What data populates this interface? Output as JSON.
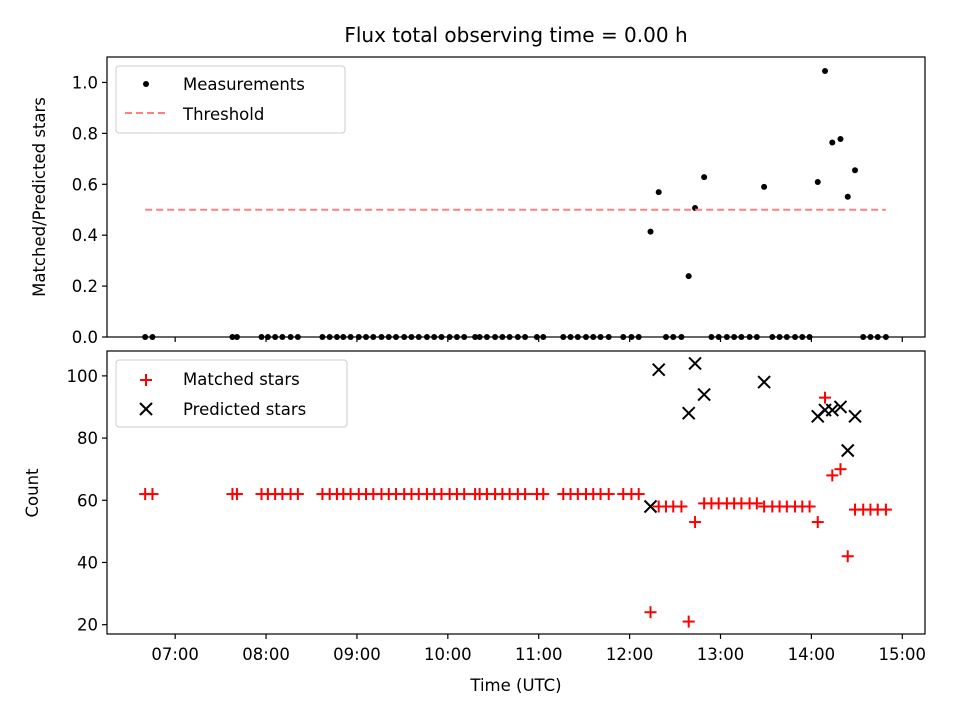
{
  "chart_data": [
    {
      "type": "scatter",
      "title": "Flux total observing time = 0.00 h",
      "xlabel": "",
      "ylabel": "Matched/Predicted stars",
      "xlim": [
        6.25,
        15.25
      ],
      "ylim": [
        0,
        1.1
      ],
      "yticks": [
        0.0,
        0.2,
        0.4,
        0.6,
        0.8,
        1.0
      ],
      "ytick_labels": [
        "0.0",
        "0.2",
        "0.4",
        "0.6",
        "0.8",
        "1.0"
      ],
      "grid": false,
      "legend": "top-left",
      "series": [
        {
          "name": "Measurements",
          "marker": "dot",
          "color": "#000000",
          "x": [
            6.67,
            6.75,
            7.63,
            7.68,
            7.95,
            8.02,
            8.1,
            8.18,
            8.27,
            8.35,
            8.62,
            8.7,
            8.78,
            8.85,
            8.93,
            9.02,
            9.1,
            9.18,
            9.27,
            9.35,
            9.43,
            9.52,
            9.6,
            9.68,
            9.77,
            9.85,
            9.93,
            10.02,
            10.1,
            10.18,
            10.3,
            10.35,
            10.43,
            10.52,
            10.6,
            10.68,
            10.77,
            10.85,
            10.98,
            11.05,
            11.27,
            11.35,
            11.43,
            11.52,
            11.6,
            11.68,
            11.77,
            11.93,
            12.02,
            12.1,
            12.23,
            12.32,
            12.4,
            12.48,
            12.57,
            12.65,
            12.72,
            12.82,
            12.9,
            12.98,
            13.07,
            13.15,
            13.23,
            13.32,
            13.4,
            13.48,
            13.57,
            13.65,
            13.73,
            13.82,
            13.9,
            13.98,
            14.07,
            14.15,
            14.23,
            14.32,
            14.4,
            14.48,
            14.57,
            14.65,
            14.73,
            14.82
          ],
          "y": [
            0,
            0,
            0,
            0,
            0,
            0,
            0,
            0,
            0,
            0,
            0,
            0,
            0,
            0,
            0,
            0,
            0,
            0,
            0,
            0,
            0,
            0,
            0,
            0,
            0,
            0,
            0,
            0,
            0,
            0,
            0,
            0,
            0,
            0,
            0,
            0,
            0,
            0,
            0,
            0,
            0,
            0,
            0,
            0,
            0,
            0,
            0,
            0,
            0,
            0,
            0.414,
            0.569,
            0,
            0,
            0,
            0.239,
            0.507,
            0.628,
            0,
            0,
            0,
            0,
            0,
            0,
            0,
            0.59,
            0,
            0,
            0,
            0,
            0,
            0,
            0.609,
            1.045,
            0.764,
            0.778,
            0.551,
            0.655,
            0,
            0,
            0,
            0
          ]
        },
        {
          "name": "Threshold",
          "marker": "dashed-line",
          "color": "#ff8080",
          "x": [
            6.67,
            14.82
          ],
          "y": [
            0.5,
            0.5
          ]
        }
      ]
    },
    {
      "type": "scatter",
      "title": "",
      "xlabel": "Time (UTC)",
      "ylabel": "Count",
      "xlim": [
        6.25,
        15.25
      ],
      "ylim": [
        17,
        108
      ],
      "yticks": [
        20,
        40,
        60,
        80,
        100
      ],
      "ytick_labels": [
        "20",
        "40",
        "60",
        "80",
        "100"
      ],
      "xticks": [
        7,
        8,
        9,
        10,
        11,
        12,
        13,
        14,
        15
      ],
      "xtick_labels": [
        "07:00",
        "08:00",
        "09:00",
        "10:00",
        "11:00",
        "12:00",
        "13:00",
        "14:00",
        "15:00"
      ],
      "grid": false,
      "legend": "top-left",
      "series": [
        {
          "name": "Matched stars",
          "marker": "plus",
          "color": "#ff0000",
          "x": [
            6.67,
            6.75,
            7.63,
            7.68,
            7.95,
            8.02,
            8.1,
            8.18,
            8.27,
            8.35,
            8.62,
            8.7,
            8.78,
            8.85,
            8.93,
            9.02,
            9.1,
            9.18,
            9.27,
            9.35,
            9.43,
            9.52,
            9.6,
            9.68,
            9.77,
            9.85,
            9.93,
            10.02,
            10.1,
            10.18,
            10.3,
            10.35,
            10.43,
            10.52,
            10.6,
            10.68,
            10.77,
            10.85,
            10.98,
            11.05,
            11.27,
            11.35,
            11.43,
            11.52,
            11.6,
            11.68,
            11.77,
            11.93,
            12.02,
            12.1,
            12.23,
            12.32,
            12.4,
            12.48,
            12.57,
            12.65,
            12.72,
            12.82,
            12.9,
            12.98,
            13.07,
            13.15,
            13.23,
            13.32,
            13.4,
            13.48,
            13.57,
            13.65,
            13.73,
            13.82,
            13.9,
            13.98,
            14.07,
            14.15,
            14.23,
            14.32,
            14.4,
            14.48,
            14.57,
            14.65,
            14.73,
            14.82
          ],
          "y": [
            62,
            62,
            62,
            62,
            62,
            62,
            62,
            62,
            62,
            62,
            62,
            62,
            62,
            62,
            62,
            62,
            62,
            62,
            62,
            62,
            62,
            62,
            62,
            62,
            62,
            62,
            62,
            62,
            62,
            62,
            62,
            62,
            62,
            62,
            62,
            62,
            62,
            62,
            62,
            62,
            62,
            62,
            62,
            62,
            62,
            62,
            62,
            62,
            62,
            62,
            24,
            58,
            58,
            58,
            58,
            21,
            53,
            59,
            59,
            59,
            59,
            59,
            59,
            59,
            59,
            58,
            58,
            58,
            58,
            58,
            58,
            58,
            53,
            93,
            68,
            70,
            42,
            57,
            57,
            57,
            57,
            57
          ]
        },
        {
          "name": "Predicted stars",
          "marker": "x",
          "color": "#000000",
          "x": [
            12.23,
            12.32,
            12.65,
            12.72,
            12.82,
            13.48,
            14.07,
            14.15,
            14.23,
            14.32,
            14.4,
            14.48
          ],
          "y": [
            58,
            102,
            88,
            104,
            94,
            98,
            87,
            89,
            89,
            90,
            76,
            87
          ]
        }
      ]
    }
  ]
}
